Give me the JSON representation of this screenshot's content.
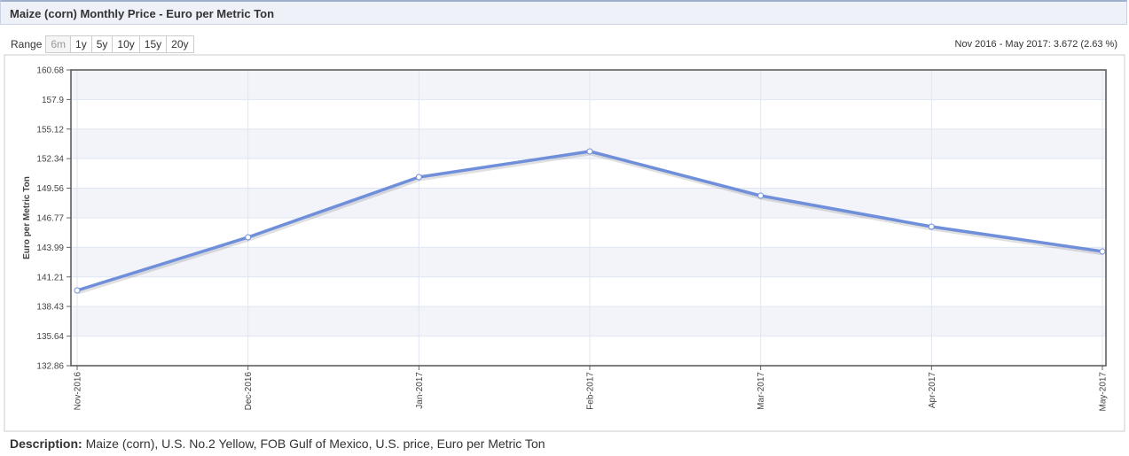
{
  "header": {
    "title": "Maize (corn) Monthly Price - Euro per Metric Ton"
  },
  "range": {
    "label": "Range",
    "buttons": [
      "6m",
      "1y",
      "5y",
      "10y",
      "15y",
      "20y"
    ]
  },
  "summary": "Nov 2016 - May 2017: 3.672 (2.63 %)",
  "chart_data": {
    "type": "line",
    "y_label": "Euro per Metric Ton",
    "categories": [
      "Nov-2016",
      "Dec-2016",
      "Jan-2017",
      "Feb-2017",
      "Mar-2017",
      "Apr-2017",
      "May-2017"
    ],
    "series": [
      {
        "name": "Maize (corn)",
        "color": "#6f8fda",
        "values": [
          139.94,
          144.94,
          150.6,
          153.02,
          148.85,
          145.94,
          143.61
        ]
      }
    ],
    "ylim": [
      132.86,
      160.68
    ],
    "yticks": [
      132.86,
      135.64,
      138.43,
      141.21,
      143.99,
      146.77,
      149.56,
      152.34,
      155.12,
      157.9,
      160.68
    ],
    "grid": true
  },
  "description": {
    "label": "Description:",
    "text": "Maize (corn), U.S. No.2 Yellow, FOB Gulf of Mexico, U.S. price, Euro per Metric Ton"
  }
}
